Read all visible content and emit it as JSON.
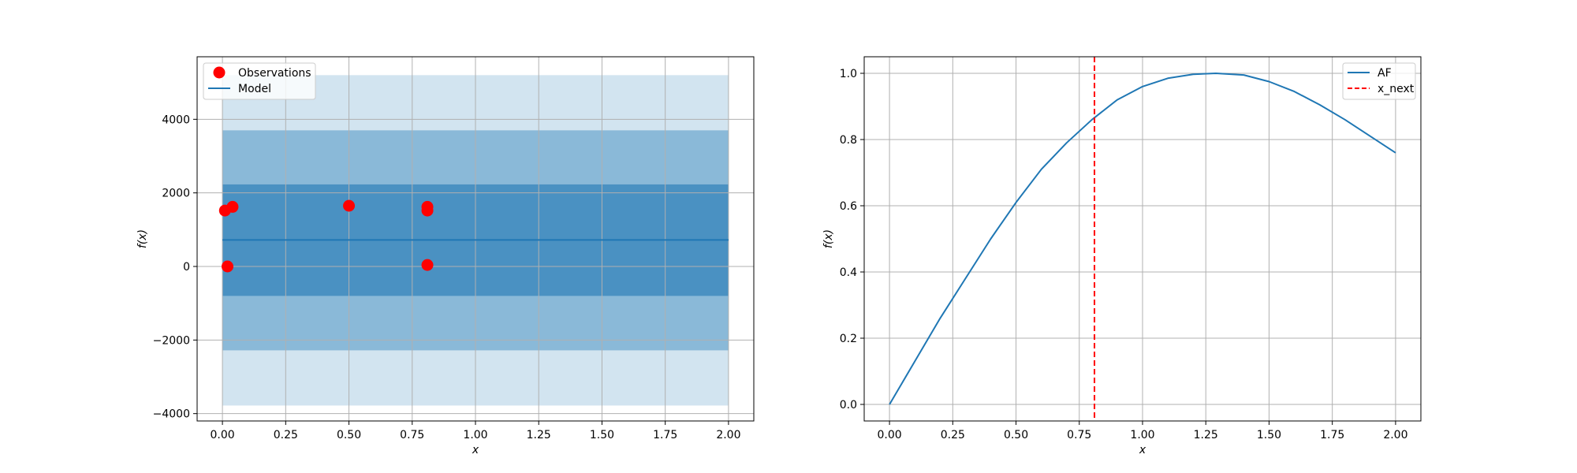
{
  "chart_data": [
    {
      "type": "scatter",
      "xlabel": "x",
      "ylabel": "f(x)",
      "xlim": [
        -0.1,
        2.1
      ],
      "ylim": [
        -4200,
        5700
      ],
      "grid": true,
      "legend_placement": "top-left",
      "xticks": [
        0.0,
        0.25,
        0.5,
        0.75,
        1.0,
        1.25,
        1.5,
        1.75,
        2.0
      ],
      "xtick_labels": [
        "0.00",
        "0.25",
        "0.50",
        "0.75",
        "1.00",
        "1.25",
        "1.50",
        "1.75",
        "2.00"
      ],
      "yticks": [
        -4000,
        -2000,
        0,
        2000,
        4000
      ],
      "ytick_labels": [
        "−4000",
        "−2000",
        "0",
        "2000",
        "4000"
      ],
      "legend": [
        "Observations",
        "Model"
      ],
      "observations": {
        "name": "Observations",
        "color": "#ff0000",
        "x": [
          0.01,
          0.04,
          0.02,
          0.5,
          0.81,
          0.81,
          0.81
        ],
        "y": [
          1520,
          1620,
          0,
          1650,
          1620,
          1520,
          40
        ]
      },
      "model": {
        "name": "Model",
        "color": "#1f77b4",
        "x": [
          0.0,
          2.0
        ],
        "y": [
          720,
          720
        ]
      },
      "confidence_bands": [
        {
          "lower": -3780,
          "upper": 5200,
          "color": "#1f77b4",
          "opacity": 0.2
        },
        {
          "lower": -2280,
          "upper": 3700,
          "color": "#1f77b4",
          "opacity": 0.4
        },
        {
          "lower": -800,
          "upper": 2230,
          "color": "#1f77b4",
          "opacity": 0.6
        }
      ]
    },
    {
      "type": "line",
      "xlabel": "x",
      "ylabel": "f(x)",
      "xlim": [
        -0.1,
        2.1
      ],
      "ylim": [
        -0.05,
        1.05
      ],
      "grid": true,
      "legend_placement": "top-right",
      "xticks": [
        0.0,
        0.25,
        0.5,
        0.75,
        1.0,
        1.25,
        1.5,
        1.75,
        2.0
      ],
      "xtick_labels": [
        "0.00",
        "0.25",
        "0.50",
        "0.75",
        "1.00",
        "1.25",
        "1.50",
        "1.75",
        "2.00"
      ],
      "yticks": [
        0.0,
        0.2,
        0.4,
        0.6,
        0.8,
        1.0
      ],
      "ytick_labels": [
        "0.0",
        "0.2",
        "0.4",
        "0.6",
        "0.8",
        "1.0"
      ],
      "legend": [
        "AF",
        "x_next"
      ],
      "series": [
        {
          "name": "AF",
          "color": "#1f77b4",
          "x": [
            0.0,
            0.1,
            0.2,
            0.3,
            0.4,
            0.5,
            0.6,
            0.7,
            0.8,
            0.9,
            1.0,
            1.1,
            1.2,
            1.29,
            1.4,
            1.5,
            1.6,
            1.7,
            1.8,
            1.9,
            2.0
          ],
          "y": [
            0.0,
            0.13,
            0.26,
            0.38,
            0.5,
            0.61,
            0.71,
            0.79,
            0.86,
            0.92,
            0.96,
            0.985,
            0.997,
            1.0,
            0.995,
            0.975,
            0.945,
            0.905,
            0.86,
            0.81,
            0.76
          ]
        }
      ],
      "vlines": [
        {
          "name": "x_next",
          "x": 0.81,
          "color": "#ff0000",
          "style": "dashed"
        }
      ]
    }
  ]
}
